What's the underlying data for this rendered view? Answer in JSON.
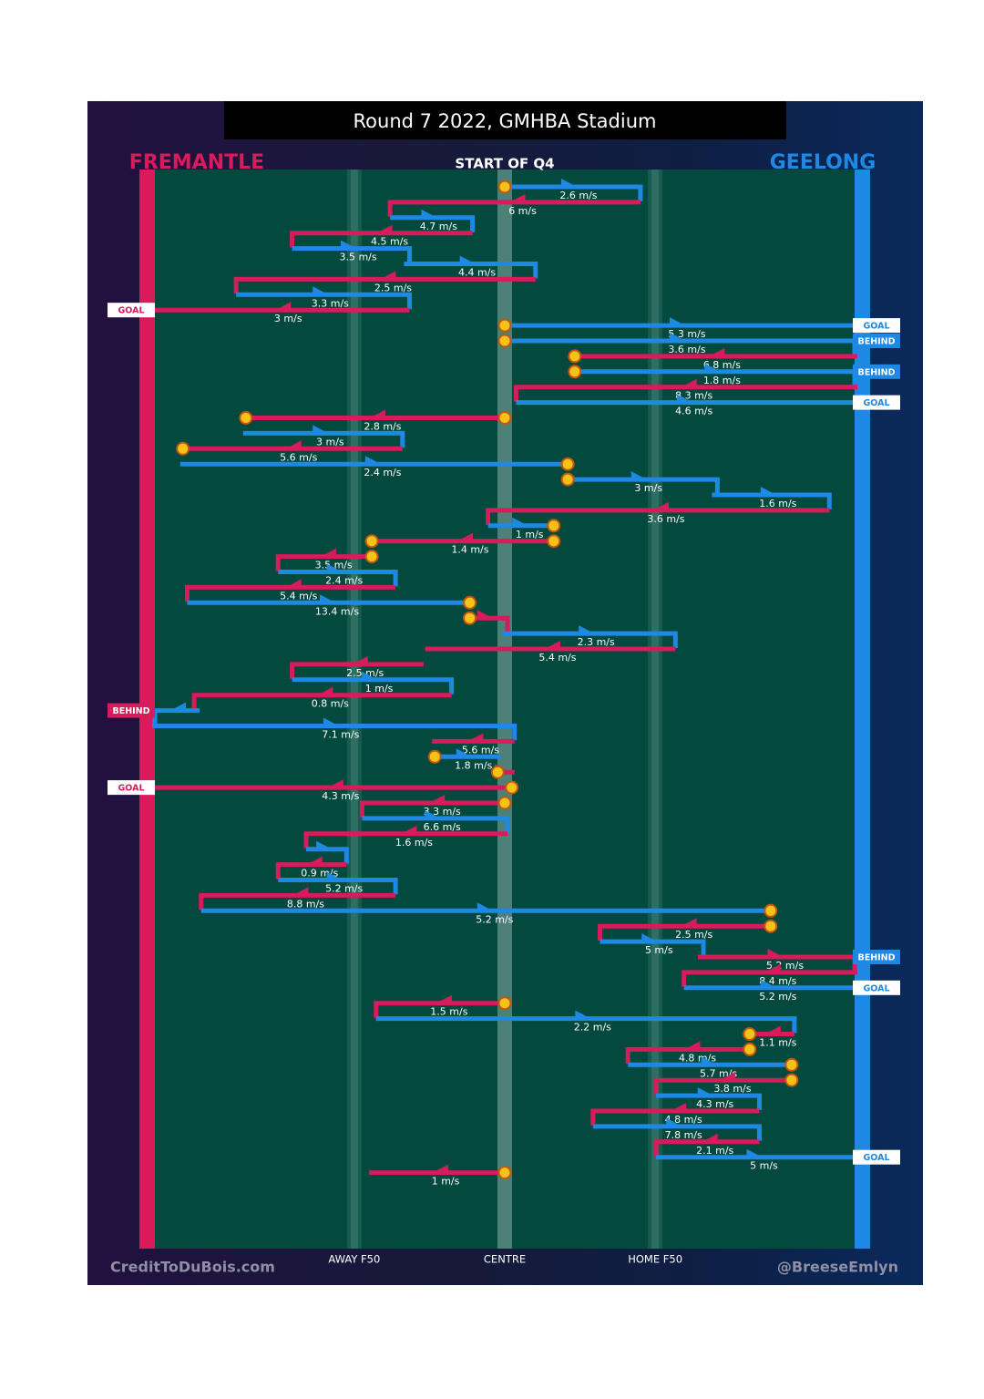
{
  "chart_data": {
    "type": "line",
    "title": "Round 7 2022, GMHBA Stadium",
    "subtitle": "START OF Q4",
    "teams": {
      "away": "FREMANTLE",
      "home": "GEELONG"
    },
    "xticks": [
      "AWAY F50",
      "CENTRE",
      "HOME F50"
    ],
    "x_range": [
      0,
      100
    ],
    "credits": {
      "left": "CreditToDuBois.com",
      "right": "@BreeseEmlyn"
    },
    "colors": {
      "away": "#d81b5b",
      "home": "#1e88e5",
      "field": "#03493d",
      "centre": "#5a8a80",
      "f50": "#1a5e50",
      "stoppage": "#f5c21b"
    },
    "segments": [
      {
        "team": "home",
        "x0": 50,
        "x1": 69,
        "speed": "2.6 m/s",
        "start": "stoppage"
      },
      {
        "team": "away",
        "x0": 69,
        "x1": 34,
        "speed": "6 m/s"
      },
      {
        "team": "home",
        "x0": 34,
        "x1": 45,
        "speed": "4.7 m/s"
      },
      {
        "team": "away",
        "x0": 45,
        "x1": 20,
        "speed": "4.5 m/s"
      },
      {
        "team": "home",
        "x0": 20,
        "x1": 36,
        "speed": "3.5 m/s"
      },
      {
        "team": "home",
        "x0": 36,
        "x1": 54,
        "speed": "4.4 m/s"
      },
      {
        "team": "away",
        "x0": 54,
        "x1": 12,
        "speed": "2.5 m/s"
      },
      {
        "team": "home",
        "x0": 12,
        "x1": 36,
        "speed": "3.3 m/s"
      },
      {
        "team": "away",
        "x0": 36,
        "x1": 0,
        "speed": "3 m/s",
        "end": "GOAL"
      },
      {
        "team": "home",
        "x0": 50,
        "x1": 100,
        "speed": "5.3 m/s",
        "start": "stoppage",
        "end": "GOAL"
      },
      {
        "team": "home",
        "x0": 50,
        "x1": 100,
        "speed": "3.6 m/s",
        "start": "stoppage",
        "end": "BEHIND"
      },
      {
        "team": "away",
        "x0": 100,
        "x1": 60,
        "speed": "6.8 m/s",
        "end_marker": "stoppage"
      },
      {
        "team": "home",
        "x0": 60,
        "x1": 100,
        "speed": "1.8 m/s",
        "start": "stoppage",
        "end": "BEHIND"
      },
      {
        "team": "away",
        "x0": 100,
        "x1": 52,
        "speed": "8.3 m/s"
      },
      {
        "team": "home",
        "x0": 52,
        "x1": 100,
        "speed": "4.6 m/s",
        "end": "GOAL"
      },
      {
        "team": "away",
        "x0": 50,
        "x1": 13,
        "speed": "2.8 m/s",
        "start": "stoppage",
        "end_marker": "stoppage"
      },
      {
        "team": "home",
        "x0": 13,
        "x1": 35,
        "speed": "3 m/s"
      },
      {
        "team": "away",
        "x0": 35,
        "x1": 4,
        "speed": "5.6 m/s",
        "end_marker": "stoppage"
      },
      {
        "team": "home",
        "x0": 4,
        "x1": 59,
        "speed": "2.4 m/s",
        "end_marker": "stoppage"
      },
      {
        "team": "home",
        "x0": 59,
        "x1": 80,
        "speed": "3 m/s",
        "start": "stoppage"
      },
      {
        "team": "home",
        "x0": 80,
        "x1": 96,
        "speed": "1.6 m/s"
      },
      {
        "team": "away",
        "x0": 96,
        "x1": 48,
        "speed": "3.6 m/s"
      },
      {
        "team": "home",
        "x0": 48,
        "x1": 57,
        "speed": "1 m/s",
        "end_marker": "stoppage"
      },
      {
        "team": "away",
        "x0": 57,
        "x1": 31,
        "speed": "1.4 m/s",
        "start": "stoppage",
        "end_marker": "stoppage"
      },
      {
        "team": "away",
        "x0": 31,
        "x1": 18,
        "speed": "3.5 m/s",
        "start": "stoppage"
      },
      {
        "team": "home",
        "x0": 18,
        "x1": 34,
        "speed": "2.4 m/s"
      },
      {
        "team": "away",
        "x0": 34,
        "x1": 5,
        "speed": "5.4 m/s"
      },
      {
        "team": "home",
        "x0": 5,
        "x1": 45,
        "speed": "13.4 m/s",
        "end_marker": "stoppage"
      },
      {
        "team": "away",
        "x0": 45,
        "x1": 50,
        "speed": "",
        "start": "stoppage"
      },
      {
        "team": "home",
        "x0": 50,
        "x1": 74,
        "speed": "2.3 m/s"
      },
      {
        "team": "away",
        "x0": 74,
        "x1": 39,
        "speed": "5.4 m/s"
      },
      {
        "team": "away",
        "x0": 38,
        "x1": 20,
        "speed": "2.5 m/s"
      },
      {
        "team": "home",
        "x0": 20,
        "x1": 42,
        "speed": "1 m/s"
      },
      {
        "team": "away",
        "x0": 42,
        "x1": 6,
        "speed": "0.8 m/s"
      },
      {
        "team": "home",
        "x0": 6,
        "x1": 0,
        "speed": "",
        "end": "BEHIND"
      },
      {
        "team": "home",
        "x0": 0,
        "x1": 51,
        "speed": "7.1 m/s"
      },
      {
        "team": "away",
        "x0": 51,
        "x1": 40,
        "speed": "5.6 m/s"
      },
      {
        "team": "home",
        "x0": 40,
        "x1": 49,
        "speed": "1.8 m/s",
        "start": "stoppage"
      },
      {
        "team": "away",
        "x0": 49,
        "x1": 51,
        "speed": "",
        "start": "stoppage"
      },
      {
        "team": "away",
        "x0": 51,
        "x1": 0,
        "speed": "4.3 m/s",
        "start": "stoppage",
        "end": "GOAL"
      },
      {
        "team": "away",
        "x0": 50,
        "x1": 30,
        "speed": "3.3 m/s",
        "start": "stoppage"
      },
      {
        "team": "home",
        "x0": 30,
        "x1": 50,
        "speed": "6.6 m/s"
      },
      {
        "team": "away",
        "x0": 50,
        "x1": 22,
        "speed": "1.6 m/s"
      },
      {
        "team": "home",
        "x0": 22,
        "x1": 27,
        "speed": ""
      },
      {
        "team": "away",
        "x0": 27,
        "x1": 18,
        "speed": "0.9 m/s"
      },
      {
        "team": "home",
        "x0": 18,
        "x1": 34,
        "speed": "5.2 m/s"
      },
      {
        "team": "away",
        "x0": 34,
        "x1": 7,
        "speed": "8.8 m/s"
      },
      {
        "team": "home",
        "x0": 7,
        "x1": 88,
        "speed": "5.2 m/s",
        "end_marker": "stoppage"
      },
      {
        "team": "away",
        "x0": 88,
        "x1": 64,
        "speed": "2.5 m/s",
        "start": "stoppage"
      },
      {
        "team": "home",
        "x0": 64,
        "x1": 78,
        "speed": "5 m/s"
      },
      {
        "team": "away",
        "x0": 78,
        "x1": 100,
        "speed": "5.2 m/s",
        "end": "BEHIND"
      },
      {
        "team": "away",
        "x0": 100,
        "x1": 76,
        "speed": "8.4 m/s"
      },
      {
        "team": "home",
        "x0": 76,
        "x1": 100,
        "speed": "5.2 m/s",
        "end": "GOAL"
      },
      {
        "team": "away",
        "x0": 50,
        "x1": 32,
        "speed": "1.5 m/s",
        "start": "stoppage"
      },
      {
        "team": "home",
        "x0": 32,
        "x1": 91,
        "speed": "2.2 m/s"
      },
      {
        "team": "away",
        "x0": 91,
        "x1": 85,
        "speed": "1.1 m/s",
        "end_marker": "stoppage"
      },
      {
        "team": "away",
        "x0": 85,
        "x1": 68,
        "speed": "4.8 m/s",
        "start": "stoppage"
      },
      {
        "team": "home",
        "x0": 68,
        "x1": 91,
        "speed": "5.7 m/s",
        "end_marker": "stoppage"
      },
      {
        "team": "away",
        "x0": 91,
        "x1": 72,
        "speed": "3.8 m/s",
        "start": "stoppage"
      },
      {
        "team": "home",
        "x0": 72,
        "x1": 86,
        "speed": "4.3 m/s"
      },
      {
        "team": "away",
        "x0": 86,
        "x1": 63,
        "speed": "4.8 m/s"
      },
      {
        "team": "home",
        "x0": 63,
        "x1": 86,
        "speed": "7.8 m/s"
      },
      {
        "team": "away",
        "x0": 86,
        "x1": 72,
        "speed": "2.1 m/s"
      },
      {
        "team": "home",
        "x0": 72,
        "x1": 100,
        "speed": "5 m/s",
        "end": "GOAL"
      },
      {
        "team": "away",
        "x0": 50,
        "x1": 31,
        "speed": "1 m/s",
        "start": "stoppage"
      }
    ]
  }
}
